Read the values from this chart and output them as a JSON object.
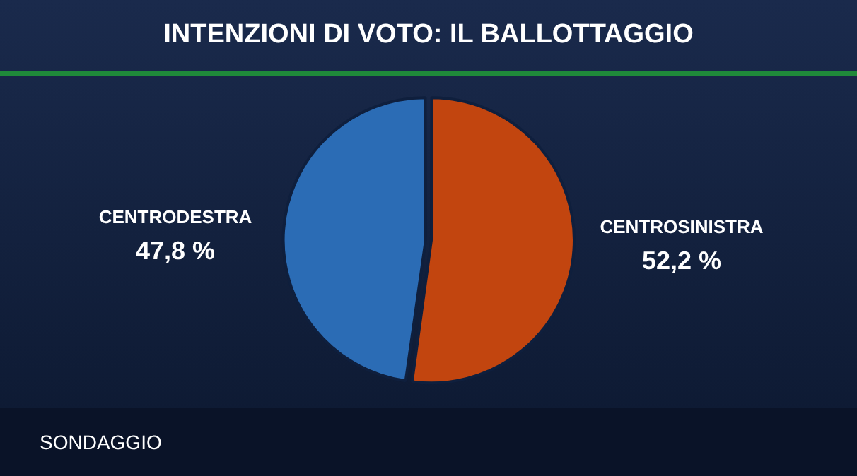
{
  "chart_data": {
    "type": "pie",
    "title": "INTENZIONI DI VOTO: IL BALLOTTAGGIO",
    "categories": [
      "CENTRODESTRA",
      "CENTROSINISTRA"
    ],
    "values": [
      47.8,
      52.2
    ],
    "colors": [
      "#2b6cb5",
      "#c2450f"
    ],
    "value_labels": [
      "47,8 %",
      "52,2 %"
    ],
    "legend": false,
    "annotations": [
      "SONDAGGIO"
    ]
  }
}
